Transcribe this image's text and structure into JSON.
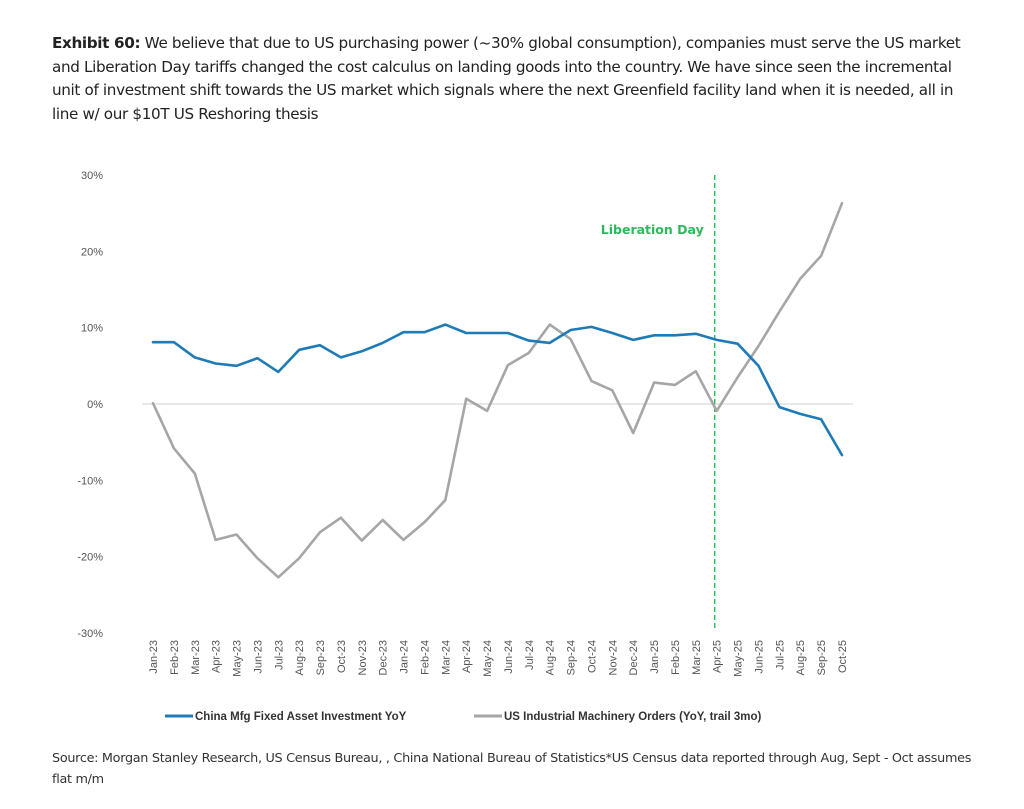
{
  "header": {
    "exhibit_label": "Exhibit 60:",
    "headline_text": " We believe that due to US purchasing power (~30% global consumption), companies must serve the US market and Liberation Day tariffs changed the cost calculus on landing goods into the country. We have since seen the incremental unit of investment shift towards the US market which signals where the next Greenfield facility land when it is needed, all in line w/ our $10T US Reshoring thesis"
  },
  "footer": {
    "source_text": "Source: Morgan Stanley Research, US Census Bureau, , China National Bureau of Statistics*US Census data reported through Aug, Sept - Oct assumes flat m/m"
  },
  "chart_data": {
    "type": "line",
    "title": "",
    "xlabel": "",
    "ylabel": "",
    "ylim": [
      -30,
      30
    ],
    "yticks": [
      30,
      20,
      10,
      0,
      -10,
      -20,
      -30
    ],
    "ytick_labels": [
      "30%",
      "20%",
      "10%",
      "0%",
      "-10%",
      "-20%",
      "-30%"
    ],
    "grid": false,
    "zero_line": true,
    "legend_position": "bottom",
    "x": [
      "Jan-23",
      "Feb-23",
      "Mar-23",
      "Apr-23",
      "May-23",
      "Jun-23",
      "Jul-23",
      "Aug-23",
      "Sep-23",
      "Oct-23",
      "Nov-23",
      "Dec-23",
      "Jan-24",
      "Feb-24",
      "Mar-24",
      "Apr-24",
      "May-24",
      "Jun-24",
      "Jul-24",
      "Aug-24",
      "Sep-24",
      "Oct-24",
      "Nov-24",
      "Dec-24",
      "Jan-25",
      "Feb-25",
      "Mar-25",
      "Apr-25",
      "May-25",
      "Jun-25",
      "Jul-25",
      "Aug-25",
      "Sep-25",
      "Oct-25"
    ],
    "series": [
      {
        "name": "China Mfg Fixed Asset Investment YoY",
        "color": "#1f7bb6",
        "values": [
          8.1,
          8.1,
          6.1,
          5.3,
          5.0,
          6.0,
          4.2,
          7.1,
          7.7,
          6.1,
          6.9,
          8.0,
          9.4,
          9.4,
          10.4,
          9.3,
          9.3,
          9.3,
          8.3,
          8.0,
          9.7,
          10.1,
          9.3,
          8.4,
          9.0,
          9.0,
          9.2,
          8.4,
          7.9,
          5.0,
          -0.4,
          -1.3,
          -2.0,
          -6.7
        ]
      },
      {
        "name": "US Industrial Machinery Orders (YoY, trail 3mo)",
        "color": "#a6a6a6",
        "values": [
          0.1,
          -5.8,
          -9.1,
          -17.8,
          -17.1,
          -20.2,
          -22.7,
          -20.2,
          -16.8,
          -14.9,
          -17.9,
          -15.2,
          -17.8,
          -15.5,
          -12.6,
          0.7,
          -0.9,
          5.1,
          6.7,
          10.4,
          8.5,
          3.0,
          1.8,
          -3.8,
          2.8,
          2.5,
          4.3,
          -0.9,
          3.5,
          7.6,
          12.1,
          16.4,
          19.4,
          26.3
        ]
      }
    ],
    "annotations": [
      {
        "type": "vertical-dashed-line",
        "label": "Liberation Day",
        "x_value": "Apr-25",
        "color": "#2eb85c"
      }
    ]
  }
}
